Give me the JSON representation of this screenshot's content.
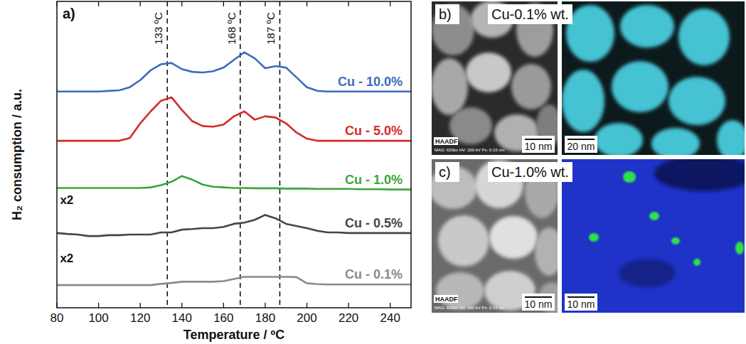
{
  "chart_data": {
    "type": "line",
    "title": "a)",
    "x_label": "Temperature / ºC",
    "y_label": "H₂ consumption / a.u.",
    "x": [
      80,
      85,
      90,
      95,
      100,
      105,
      110,
      115,
      120,
      125,
      130,
      135,
      140,
      145,
      150,
      155,
      160,
      165,
      170,
      175,
      180,
      185,
      190,
      195,
      200,
      205,
      210,
      215,
      220,
      225,
      230,
      235,
      240,
      245,
      250
    ],
    "xlim": [
      80,
      250
    ],
    "xticks": [
      80,
      100,
      120,
      140,
      160,
      180,
      200,
      220,
      240
    ],
    "ylim": [
      0,
      100
    ],
    "tick_labels": "x",
    "grid": false,
    "line_style": "solid",
    "series": [
      {
        "name": "Cu - 10.0%",
        "color": "#3d6bbd",
        "values": [
          70.6,
          70.6,
          70.6,
          70.6,
          70.6,
          70.8,
          71.0,
          72.0,
          74.3,
          77.5,
          79.5,
          79.9,
          77.9,
          77.0,
          76.8,
          77.2,
          78.4,
          80.9,
          83.4,
          81.4,
          78.2,
          78.9,
          78.4,
          75.2,
          72.0,
          70.8,
          70.6,
          70.6,
          70.6,
          70.6,
          70.6,
          70.6,
          70.6,
          70.6,
          70.6
        ]
      },
      {
        "name": "Cu - 5.0%",
        "color": "#d42a2a",
        "values": [
          54.5,
          54.5,
          54.5,
          54.5,
          54.5,
          54.5,
          54.5,
          55.4,
          60.2,
          64.1,
          67.6,
          68.7,
          64.6,
          60.9,
          59.3,
          59.1,
          59.8,
          62.5,
          64.1,
          61.4,
          62.5,
          62.1,
          60.2,
          57.2,
          55.2,
          54.5,
          54.5,
          54.5,
          54.5,
          54.5,
          54.5,
          54.5,
          54.5,
          54.5,
          54.5
        ]
      },
      {
        "name": "Cu - 1.0%",
        "color": "#3aa63a",
        "values": [
          39.1,
          39.1,
          39.1,
          39.1,
          39.1,
          39.1,
          39.1,
          39.1,
          39.1,
          39.3,
          40.0,
          41.1,
          43.0,
          41.8,
          40.2,
          39.5,
          39.3,
          39.1,
          39.1,
          39.0,
          39.0,
          39.0,
          38.9,
          38.9,
          38.9,
          38.8,
          38.8,
          38.8,
          38.8,
          38.7,
          38.7,
          38.7,
          38.6,
          38.6,
          38.6
        ]
      },
      {
        "name": "Cu - 0.5%",
        "color": "#454545",
        "values": [
          24.4,
          24.1,
          23.9,
          23.4,
          23.4,
          23.7,
          23.7,
          23.9,
          23.9,
          23.9,
          24.6,
          24.6,
          25.5,
          25.7,
          26.0,
          26.0,
          26.4,
          27.4,
          27.8,
          28.7,
          30.3,
          29.2,
          27.4,
          26.7,
          26.0,
          25.1,
          24.6,
          24.6,
          24.4,
          24.4,
          24.4,
          24.4,
          24.4,
          24.4,
          24.4
        ]
      },
      {
        "name": "Cu - 0.1%",
        "color": "#8a8a8a",
        "values": [
          7.4,
          7.4,
          7.4,
          7.4,
          7.4,
          7.4,
          7.4,
          7.4,
          7.4,
          7.4,
          7.8,
          8.1,
          8.5,
          8.5,
          8.5,
          8.5,
          8.7,
          9.4,
          10.1,
          10.1,
          10.1,
          10.1,
          10.1,
          10.0,
          8.0,
          7.7,
          7.6,
          7.6,
          7.6,
          7.6,
          7.6,
          7.6,
          7.6,
          7.6,
          7.6
        ]
      }
    ],
    "reference_lines": [
      {
        "value": 133,
        "label": "133 ºC"
      },
      {
        "value": 168,
        "label": "168 ºC"
      },
      {
        "value": 187,
        "label": "187 ºC"
      }
    ],
    "annotations": [
      {
        "text": "x2",
        "x": 81.5,
        "y": 33.8
      },
      {
        "text": "x2",
        "x": 81.5,
        "y": 14.9
      }
    ]
  },
  "panels": [
    {
      "letter": "b)",
      "title": "Cu-0.1% wt.",
      "detector": "HAADF",
      "info": "MAG: 630kx  HV: 200 kV  Px: 0.15 nm",
      "scale_bars": [
        "10 nm",
        "20 nm"
      ]
    },
    {
      "letter": "c)",
      "title": "Cu-1.0% wt.",
      "detector": "HAADF",
      "info": "MAG: 630kx  HV: 200 kV  Px: 0.15 nm",
      "scale_bars": [
        "10 nm",
        "10 nm"
      ]
    }
  ]
}
